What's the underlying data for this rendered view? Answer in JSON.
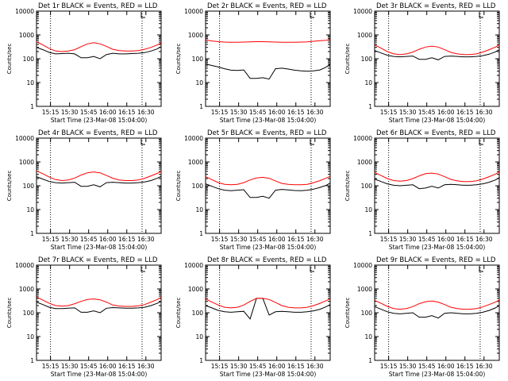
{
  "figure": {
    "colors": {
      "events": "#000000",
      "lld": "#ff0000",
      "axes": "#000000",
      "marker": "#000000"
    }
  },
  "chart_data": [
    {
      "type": "line",
      "title": "Det 1r BLACK = Events, RED = LLD",
      "xlabel": "Start Time (23-Mar-08 15:04:00)",
      "ylabel": "Counts/sec",
      "x_ticks": [
        "15:15",
        "15:30",
        "15:45",
        "16:00",
        "16:15",
        "16:30"
      ],
      "y_ticks": [
        "1",
        "10",
        "100",
        "1000",
        "10000"
      ],
      "yscale": "log",
      "ylim": [
        1,
        10000
      ],
      "xlim_min_from_start": [
        0,
        98
      ],
      "dotted_lines_at_min": [
        11,
        83
      ],
      "grid": false,
      "x": [
        0,
        5,
        10,
        15,
        20,
        25,
        30,
        35,
        40,
        45,
        50,
        55,
        60,
        65,
        70,
        75,
        80,
        85,
        90,
        95,
        98
      ],
      "series": [
        {
          "name": "BLACK = Events",
          "values": [
            300,
            240,
            185,
            160,
            165,
            170,
            160,
            110,
            110,
            125,
            100,
            150,
            170,
            160,
            160,
            165,
            170,
            180,
            210,
            260,
            320
          ]
        },
        {
          "name": "RED = LLD",
          "values": [
            520,
            380,
            270,
            210,
            200,
            210,
            240,
            320,
            420,
            470,
            420,
            330,
            250,
            220,
            210,
            210,
            220,
            250,
            300,
            380,
            460
          ]
        }
      ]
    },
    {
      "type": "line",
      "title": "Det 2r BLACK = Events, RED = LLD",
      "xlabel": "Start Time (23-Mar-08 15:04:00)",
      "ylabel": "Counts/sec",
      "x_ticks": [
        "15:15",
        "15:30",
        "15:45",
        "16:00",
        "16:15",
        "16:30"
      ],
      "y_ticks": [
        "1",
        "10",
        "100",
        "1000",
        "10000"
      ],
      "yscale": "log",
      "ylim": [
        1,
        10000
      ],
      "xlim_min_from_start": [
        0,
        98
      ],
      "dotted_lines_at_min": [
        11,
        83
      ],
      "grid": false,
      "x": [
        0,
        5,
        10,
        15,
        20,
        25,
        30,
        35,
        40,
        45,
        50,
        55,
        60,
        65,
        70,
        75,
        80,
        85,
        90,
        95,
        98
      ],
      "series": [
        {
          "name": "BLACK = Events",
          "values": [
            60,
            52,
            45,
            38,
            33,
            32,
            34,
            15,
            15,
            16,
            14,
            38,
            40,
            37,
            33,
            31,
            30,
            31,
            34,
            45,
            60
          ]
        },
        {
          "name": "RED = LLD",
          "values": [
            620,
            560,
            520,
            500,
            490,
            490,
            500,
            510,
            520,
            520,
            510,
            500,
            490,
            490,
            490,
            500,
            510,
            540,
            570,
            600,
            640
          ]
        }
      ]
    },
    {
      "type": "line",
      "title": "Det 3r BLACK = Events, RED = LLD",
      "xlabel": "Start Time (23-Mar-08 15:04:00)",
      "ylabel": "Counts/sec",
      "x_ticks": [
        "15:15",
        "15:30",
        "15:45",
        "16:00",
        "16:15",
        "16:30"
      ],
      "y_ticks": [
        "1",
        "10",
        "100",
        "1000",
        "10000"
      ],
      "yscale": "log",
      "ylim": [
        1,
        10000
      ],
      "xlim_min_from_start": [
        0,
        98
      ],
      "dotted_lines_at_min": [
        11,
        83
      ],
      "grid": false,
      "x": [
        0,
        5,
        10,
        15,
        20,
        25,
        30,
        35,
        40,
        45,
        50,
        55,
        60,
        65,
        70,
        75,
        80,
        85,
        90,
        95,
        98
      ],
      "series": [
        {
          "name": "BLACK = Events",
          "values": [
            220,
            175,
            140,
            125,
            120,
            125,
            130,
            95,
            95,
            110,
            90,
            125,
            130,
            125,
            120,
            120,
            125,
            135,
            155,
            195,
            240
          ]
        },
        {
          "name": "RED = LLD",
          "values": [
            380,
            280,
            200,
            160,
            150,
            160,
            190,
            250,
            310,
            340,
            310,
            240,
            185,
            160,
            150,
            150,
            160,
            190,
            240,
            310,
            380
          ]
        }
      ]
    },
    {
      "type": "line",
      "title": "Det 4r BLACK = Events, RED = LLD",
      "xlabel": "Start Time (23-Mar-08 15:04:00)",
      "ylabel": "Counts/sec",
      "x_ticks": [
        "15:15",
        "15:30",
        "15:45",
        "16:00",
        "16:15",
        "16:30"
      ],
      "y_ticks": [
        "1",
        "10",
        "100",
        "1000",
        "10000"
      ],
      "yscale": "log",
      "ylim": [
        1,
        10000
      ],
      "xlim_min_from_start": [
        0,
        98
      ],
      "dotted_lines_at_min": [
        11,
        83
      ],
      "grid": false,
      "x": [
        0,
        5,
        10,
        15,
        20,
        25,
        30,
        35,
        40,
        45,
        50,
        55,
        60,
        65,
        70,
        75,
        80,
        85,
        90,
        95,
        98
      ],
      "series": [
        {
          "name": "BLACK = Events",
          "values": [
            240,
            190,
            150,
            135,
            130,
            135,
            140,
            95,
            95,
            110,
            90,
            135,
            140,
            135,
            130,
            130,
            135,
            145,
            165,
            205,
            250
          ]
        },
        {
          "name": "RED = LLD",
          "values": [
            420,
            320,
            230,
            180,
            165,
            175,
            210,
            280,
            350,
            380,
            350,
            270,
            205,
            175,
            165,
            165,
            175,
            205,
            260,
            330,
            400
          ]
        }
      ]
    },
    {
      "type": "line",
      "title": "Det 5r BLACK = Events, RED = LLD",
      "xlabel": "Start Time (23-Mar-08 15:04:00)",
      "ylabel": "Counts/sec",
      "x_ticks": [
        "15:15",
        "15:30",
        "15:45",
        "16:00",
        "16:15",
        "16:30"
      ],
      "y_ticks": [
        "1",
        "10",
        "100",
        "1000",
        "10000"
      ],
      "yscale": "log",
      "ylim": [
        1,
        10000
      ],
      "xlim_min_from_start": [
        0,
        98
      ],
      "dotted_lines_at_min": [
        11,
        83
      ],
      "grid": false,
      "x": [
        0,
        5,
        10,
        15,
        20,
        25,
        30,
        35,
        40,
        45,
        50,
        55,
        60,
        65,
        70,
        75,
        80,
        85,
        90,
        95,
        98
      ],
      "series": [
        {
          "name": "BLACK = Events",
          "values": [
            120,
            95,
            75,
            65,
            62,
            65,
            68,
            32,
            32,
            36,
            30,
            65,
            70,
            67,
            63,
            62,
            65,
            72,
            85,
            105,
            130
          ]
        },
        {
          "name": "RED = LLD",
          "values": [
            240,
            180,
            135,
            115,
            110,
            115,
            135,
            175,
            210,
            225,
            205,
            160,
            125,
            115,
            110,
            110,
            115,
            135,
            165,
            210,
            250
          ]
        }
      ]
    },
    {
      "type": "line",
      "title": "Det 6r BLACK = Events, RED = LLD",
      "xlabel": "Start Time (23-Mar-08 15:04:00)",
      "ylabel": "Counts/sec",
      "x_ticks": [
        "15:15",
        "15:30",
        "15:45",
        "16:00",
        "16:15",
        "16:30"
      ],
      "y_ticks": [
        "1",
        "10",
        "100",
        "1000",
        "10000"
      ],
      "yscale": "log",
      "ylim": [
        1,
        10000
      ],
      "xlim_min_from_start": [
        0,
        98
      ],
      "dotted_lines_at_min": [
        11,
        83
      ],
      "grid": false,
      "x": [
        0,
        5,
        10,
        15,
        20,
        25,
        30,
        35,
        40,
        45,
        50,
        55,
        60,
        65,
        70,
        75,
        80,
        85,
        90,
        95,
        98
      ],
      "series": [
        {
          "name": "BLACK = Events",
          "values": [
            190,
            150,
            120,
            105,
            100,
            105,
            110,
            75,
            80,
            95,
            80,
            110,
            115,
            110,
            105,
            105,
            110,
            120,
            140,
            175,
            220
          ]
        },
        {
          "name": "RED = LLD",
          "values": [
            360,
            270,
            200,
            165,
            155,
            165,
            200,
            260,
            320,
            340,
            310,
            240,
            185,
            160,
            150,
            150,
            160,
            190,
            240,
            310,
            380
          ]
        }
      ]
    },
    {
      "type": "line",
      "title": "Det 7r BLACK = Events, RED = LLD",
      "xlabel": "Start Time (23-Mar-08 15:04:00)",
      "ylabel": "Counts/sec",
      "x_ticks": [
        "15:15",
        "15:30",
        "15:45",
        "16:00",
        "16:15",
        "16:30"
      ],
      "y_ticks": [
        "1",
        "10",
        "100",
        "1000",
        "10000"
      ],
      "yscale": "log",
      "ylim": [
        1,
        10000
      ],
      "xlim_min_from_start": [
        0,
        98
      ],
      "dotted_lines_at_min": [
        11,
        83
      ],
      "grid": false,
      "x": [
        0,
        5,
        10,
        15,
        20,
        25,
        30,
        35,
        40,
        45,
        50,
        55,
        60,
        65,
        70,
        75,
        80,
        85,
        90,
        95,
        98
      ],
      "series": [
        {
          "name": "BLACK = Events",
          "values": [
            280,
            220,
            170,
            150,
            150,
            155,
            160,
            105,
            105,
            120,
            100,
            155,
            165,
            160,
            155,
            155,
            160,
            170,
            200,
            250,
            300
          ]
        },
        {
          "name": "RED = LLD",
          "values": [
            460,
            340,
            250,
            200,
            190,
            200,
            240,
            300,
            360,
            380,
            350,
            280,
            210,
            190,
            185,
            185,
            195,
            220,
            280,
            360,
            440
          ]
        }
      ]
    },
    {
      "type": "line",
      "title": "Det 8r BLACK = Events, RED = LLD",
      "xlabel": "Start Time (23-Mar-08 15:04:00)",
      "ylabel": "Counts/sec",
      "x_ticks": [
        "15:15",
        "15:30",
        "15:45",
        "16:00",
        "16:15",
        "16:30"
      ],
      "y_ticks": [
        "1",
        "10",
        "100",
        "1000",
        "10000"
      ],
      "yscale": "log",
      "ylim": [
        1,
        10000
      ],
      "xlim_min_from_start": [
        0,
        98
      ],
      "dotted_lines_at_min": [
        11,
        83
      ],
      "grid": false,
      "x": [
        0,
        5,
        10,
        15,
        20,
        25,
        30,
        35,
        40,
        45,
        50,
        55,
        60,
        65,
        70,
        75,
        80,
        85,
        90,
        95,
        98
      ],
      "series": [
        {
          "name": "BLACK = Events",
          "values": [
            200,
            160,
            125,
            110,
            105,
            110,
            115,
            55,
            400,
            400,
            80,
            110,
            115,
            110,
            105,
            105,
            110,
            120,
            140,
            180,
            220
          ]
        },
        {
          "name": "RED = LLD",
          "values": [
            380,
            280,
            210,
            170,
            160,
            170,
            210,
            300,
            400,
            400,
            360,
            270,
            200,
            170,
            160,
            160,
            170,
            200,
            250,
            320,
            390
          ]
        }
      ]
    },
    {
      "type": "line",
      "title": "Det 9r BLACK = Events, RED = LLD",
      "xlabel": "Start Time (23-Mar-08 15:04:00)",
      "ylabel": "Counts/sec",
      "x_ticks": [
        "15:15",
        "15:30",
        "15:45",
        "16:00",
        "16:15",
        "16:30"
      ],
      "y_ticks": [
        "1",
        "10",
        "100",
        "1000",
        "10000"
      ],
      "yscale": "log",
      "ylim": [
        1,
        10000
      ],
      "xlim_min_from_start": [
        0,
        98
      ],
      "dotted_lines_at_min": [
        11,
        83
      ],
      "grid": false,
      "x": [
        0,
        5,
        10,
        15,
        20,
        25,
        30,
        35,
        40,
        45,
        50,
        55,
        60,
        65,
        70,
        75,
        80,
        85,
        90,
        95,
        98
      ],
      "series": [
        {
          "name": "BLACK = Events",
          "values": [
            180,
            140,
            110,
            95,
            90,
            95,
            100,
            65,
            65,
            75,
            60,
            95,
            100,
            95,
            90,
            90,
            95,
            105,
            125,
            160,
            200
          ]
        },
        {
          "name": "RED = LLD",
          "values": [
            330,
            250,
            185,
            150,
            140,
            150,
            180,
            240,
            290,
            310,
            280,
            220,
            170,
            150,
            140,
            140,
            150,
            175,
            220,
            280,
            340
          ]
        }
      ]
    }
  ]
}
